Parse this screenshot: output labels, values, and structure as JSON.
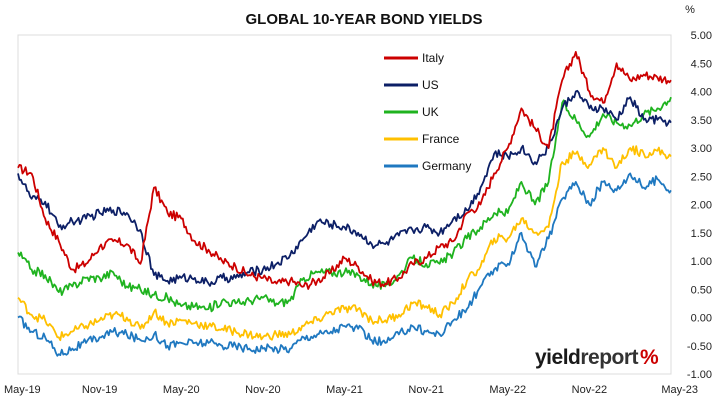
{
  "chart_data": {
    "type": "line",
    "title": "GLOBAL 10-YEAR BOND YIELDS",
    "y_unit": "%",
    "xlabel": "",
    "ylabel": "",
    "ylim": [
      -1.0,
      5.0
    ],
    "y_ticks": [
      "5.00",
      "4.50",
      "4.00",
      "3.50",
      "3.00",
      "2.50",
      "2.00",
      "1.50",
      "1.00",
      "0.50",
      "0.00",
      "-0.50",
      "-1.00"
    ],
    "x_ticks": [
      "May-19",
      "Nov-19",
      "May-20",
      "Nov-20",
      "May-21",
      "Nov-21",
      "May-22",
      "Nov-22",
      "May-23"
    ],
    "grid": false,
    "legend": "top-center",
    "x": [
      "May-19",
      "Jun-19",
      "Jul-19",
      "Aug-19",
      "Sep-19",
      "Oct-19",
      "Nov-19",
      "Dec-19",
      "Jan-20",
      "Feb-20",
      "Mar-20",
      "Apr-20",
      "May-20",
      "Jun-20",
      "Jul-20",
      "Aug-20",
      "Sep-20",
      "Oct-20",
      "Nov-20",
      "Dec-20",
      "Jan-21",
      "Feb-21",
      "Mar-21",
      "Apr-21",
      "May-21",
      "Jun-21",
      "Jul-21",
      "Aug-21",
      "Sep-21",
      "Oct-21",
      "Nov-21",
      "Dec-21",
      "Jan-22",
      "Feb-22",
      "Mar-22",
      "Apr-22",
      "May-22",
      "Jun-22",
      "Jul-22",
      "Aug-22",
      "Sep-22",
      "Oct-22",
      "Nov-22",
      "Dec-22",
      "Jan-23",
      "Feb-23",
      "Mar-23",
      "Apr-23",
      "May-23"
    ],
    "series": [
      {
        "name": "Italy",
        "color": "#cc0000",
        "values": [
          2.65,
          2.55,
          1.75,
          1.35,
          0.85,
          0.95,
          1.25,
          1.35,
          1.3,
          0.95,
          2.3,
          1.85,
          1.75,
          1.35,
          1.2,
          1.0,
          0.9,
          0.75,
          0.7,
          0.6,
          0.65,
          0.55,
          0.65,
          0.8,
          1.05,
          0.9,
          0.65,
          0.6,
          0.7,
          0.95,
          1.05,
          1.25,
          1.35,
          1.85,
          2.0,
          2.55,
          3.0,
          3.7,
          3.35,
          3.0,
          4.2,
          4.7,
          4.0,
          3.8,
          4.5,
          4.2,
          4.3,
          4.25,
          4.2
        ]
      },
      {
        "name": "US",
        "color": "#0c1f66",
        "values": [
          2.55,
          2.1,
          2.05,
          1.6,
          1.7,
          1.75,
          1.85,
          1.9,
          1.85,
          1.55,
          0.75,
          0.65,
          0.7,
          0.7,
          0.6,
          0.7,
          0.7,
          0.8,
          0.85,
          0.95,
          1.1,
          1.4,
          1.7,
          1.65,
          1.6,
          1.5,
          1.3,
          1.3,
          1.45,
          1.55,
          1.6,
          1.5,
          1.75,
          1.9,
          2.3,
          2.9,
          2.85,
          3.0,
          2.75,
          3.0,
          3.7,
          4.0,
          3.7,
          3.7,
          3.5,
          3.9,
          3.5,
          3.5,
          3.45
        ]
      },
      {
        "name": "UK",
        "color": "#1fb31f",
        "values": [
          1.15,
          0.85,
          0.75,
          0.45,
          0.55,
          0.7,
          0.7,
          0.8,
          0.55,
          0.5,
          0.4,
          0.35,
          0.2,
          0.2,
          0.15,
          0.3,
          0.25,
          0.3,
          0.35,
          0.25,
          0.3,
          0.7,
          0.8,
          0.8,
          0.8,
          0.75,
          0.6,
          0.55,
          0.75,
          1.05,
          0.95,
          0.95,
          1.15,
          1.4,
          1.6,
          1.85,
          1.85,
          2.4,
          2.0,
          2.4,
          3.8,
          3.5,
          3.2,
          3.6,
          3.45,
          3.4,
          3.6,
          3.7,
          3.9
        ]
      },
      {
        "name": "France",
        "color": "#ffc000",
        "values": [
          0.35,
          0.05,
          -0.05,
          -0.35,
          -0.25,
          -0.15,
          -0.05,
          0.05,
          0.0,
          -0.2,
          0.1,
          -0.1,
          -0.05,
          -0.1,
          -0.15,
          -0.2,
          -0.25,
          -0.3,
          -0.35,
          -0.3,
          -0.3,
          -0.15,
          -0.05,
          0.1,
          0.15,
          0.15,
          -0.05,
          -0.05,
          0.05,
          0.25,
          0.2,
          0.05,
          0.25,
          0.65,
          0.9,
          1.4,
          1.4,
          1.75,
          1.5,
          1.6,
          2.75,
          2.9,
          2.7,
          3.0,
          2.65,
          3.0,
          2.9,
          2.95,
          2.85
        ]
      },
      {
        "name": "Germany",
        "color": "#1f78c0",
        "values": [
          0.0,
          -0.25,
          -0.35,
          -0.65,
          -0.55,
          -0.45,
          -0.35,
          -0.25,
          -0.3,
          -0.4,
          -0.3,
          -0.5,
          -0.45,
          -0.45,
          -0.45,
          -0.5,
          -0.5,
          -0.55,
          -0.55,
          -0.55,
          -0.55,
          -0.35,
          -0.3,
          -0.25,
          -0.15,
          -0.2,
          -0.4,
          -0.45,
          -0.3,
          -0.15,
          -0.25,
          -0.3,
          -0.05,
          0.15,
          0.55,
          0.85,
          0.95,
          1.5,
          0.9,
          1.4,
          2.1,
          2.4,
          2.0,
          2.4,
          2.25,
          2.55,
          2.3,
          2.45,
          2.25
        ]
      }
    ]
  },
  "watermark": {
    "text_a": "yield",
    "text_b": "report",
    "glyph": "%"
  }
}
